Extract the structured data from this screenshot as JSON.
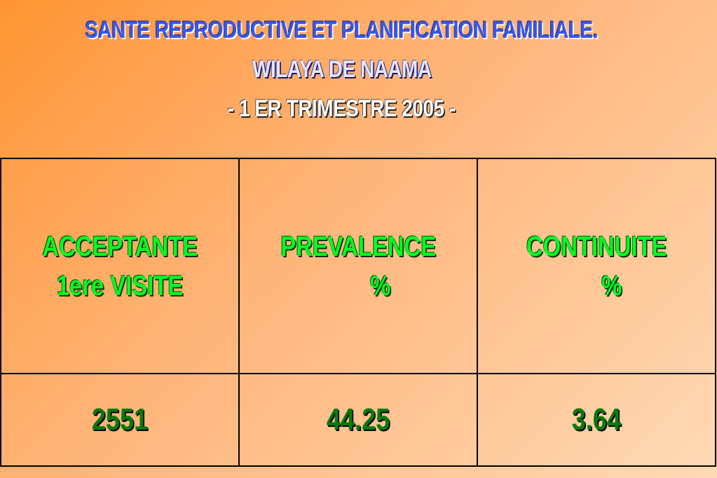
{
  "header": {
    "lines": [
      "SANTE REPRODUCTIVE ET PLANIFICATION FAMILIALE.",
      "WILAYA DE NAAMA",
      "- 1 ER TRIMESTRE 2005 -"
    ]
  },
  "table": {
    "header": [
      [
        "ACCEPTANTE",
        "1ere VISITE"
      ],
      [
        "PREVALENCE",
        "%"
      ],
      [
        "CONTINUITE",
        "%"
      ]
    ],
    "rows": [
      [
        2551,
        44.25,
        3.64
      ]
    ]
  }
}
